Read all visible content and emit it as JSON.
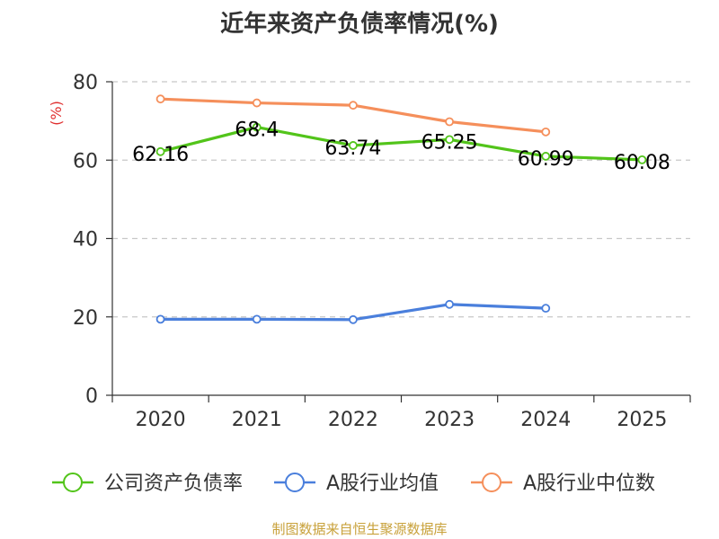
{
  "chart_data": {
    "type": "line",
    "title": "近年来资产负债率情况(%)",
    "ylabel": "(%)",
    "xlabel": "",
    "categories": [
      "2020",
      "2021",
      "2022",
      "2023",
      "2024",
      "2025"
    ],
    "ylim": [
      0,
      80
    ],
    "yticks": [
      0,
      20,
      40,
      60,
      80
    ],
    "grid": true,
    "legend_position": "bottom",
    "series": [
      {
        "name": "公司资产负债率",
        "color": "#52c41a",
        "values": [
          62.16,
          68.4,
          63.74,
          65.25,
          60.99,
          60.08
        ],
        "labels": [
          "62.16",
          "68.4",
          "63.74",
          "65.25",
          "60.99",
          "60.08"
        ]
      },
      {
        "name": "A股行业均值",
        "color": "#4a7fdc",
        "values": [
          19.4,
          19.4,
          19.3,
          23.2,
          22.2,
          null
        ]
      },
      {
        "name": "A股行业中位数",
        "color": "#f58f5b",
        "values": [
          75.6,
          74.6,
          74.0,
          69.8,
          67.2,
          null
        ]
      }
    ]
  },
  "footer": {
    "source": "制图数据来自恒生聚源数据库"
  }
}
